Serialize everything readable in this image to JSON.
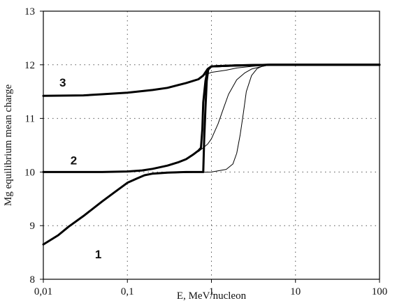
{
  "chart_data": {
    "type": "line",
    "x_scale": "log",
    "xlim": [
      0.01,
      100
    ],
    "ylim": [
      8,
      13
    ],
    "xlabel": "E, MeV/nucleon",
    "ylabel": "Mg equilibrium mean charge",
    "x_ticks": [
      0.01,
      0.1,
      1,
      10,
      100
    ],
    "x_tick_labels": [
      "0,01",
      "0,1",
      "1",
      "10",
      "100"
    ],
    "y_ticks": [
      8,
      9,
      10,
      11,
      12,
      13
    ],
    "y_tick_labels": [
      "8",
      "9",
      "10",
      "11",
      "12",
      "13"
    ],
    "grid": "dotted",
    "legend": "none",
    "curve_labels": [
      {
        "text": "1",
        "x": 0.045,
        "y": 8.47
      },
      {
        "text": "2",
        "x": 0.023,
        "y": 10.22
      },
      {
        "text": "3",
        "x": 0.017,
        "y": 11.67
      }
    ],
    "series": [
      {
        "values": [
          [
            0.01,
            8.65
          ],
          [
            0.015,
            8.82
          ],
          [
            0.02,
            8.98
          ],
          [
            0.03,
            9.18
          ],
          [
            0.05,
            9.45
          ],
          [
            0.07,
            9.62
          ],
          [
            0.1,
            9.8
          ],
          [
            0.13,
            9.88
          ],
          [
            0.16,
            9.94
          ],
          [
            0.2,
            9.97
          ],
          [
            0.3,
            9.99
          ],
          [
            0.5,
            10.0
          ],
          [
            0.75,
            10.0
          ],
          [
            0.8,
            10.0
          ],
          [
            0.82,
            10.6
          ],
          [
            0.85,
            11.2
          ],
          [
            0.88,
            11.7
          ],
          [
            0.92,
            11.93
          ],
          [
            1.0,
            11.97
          ],
          [
            1.5,
            11.98
          ],
          [
            2,
            11.99
          ],
          [
            5,
            12.0
          ],
          [
            10,
            12.0
          ],
          [
            100,
            12.0
          ]
        ],
        "stroke": "heavy"
      },
      {
        "values": [
          [
            0.01,
            10.0
          ],
          [
            0.05,
            10.0
          ],
          [
            0.1,
            10.01
          ],
          [
            0.15,
            10.03
          ],
          [
            0.2,
            10.06
          ],
          [
            0.3,
            10.12
          ],
          [
            0.4,
            10.18
          ],
          [
            0.5,
            10.24
          ],
          [
            0.6,
            10.32
          ],
          [
            0.7,
            10.4
          ],
          [
            0.75,
            10.45
          ],
          [
            0.78,
            10.8
          ],
          [
            0.8,
            11.3
          ],
          [
            0.85,
            11.7
          ],
          [
            0.9,
            11.9
          ],
          [
            1.0,
            11.97
          ],
          [
            1.5,
            11.98
          ],
          [
            5,
            12.0
          ],
          [
            100,
            12.0
          ]
        ],
        "stroke": "heavy"
      },
      {
        "values": [
          [
            0.01,
            11.42
          ],
          [
            0.03,
            11.43
          ],
          [
            0.05,
            11.45
          ],
          [
            0.1,
            11.48
          ],
          [
            0.2,
            11.53
          ],
          [
            0.3,
            11.57
          ],
          [
            0.5,
            11.66
          ],
          [
            0.7,
            11.73
          ],
          [
            0.8,
            11.8
          ],
          [
            0.9,
            11.92
          ],
          [
            1.0,
            11.97
          ],
          [
            2,
            11.99
          ],
          [
            5,
            12.0
          ],
          [
            100,
            12.0
          ]
        ],
        "stroke": "heavy"
      },
      {
        "values": [
          [
            0.2,
            9.97
          ],
          [
            0.5,
            9.99
          ],
          [
            1.0,
            10.0
          ],
          [
            1.5,
            10.05
          ],
          [
            1.8,
            10.15
          ],
          [
            2.0,
            10.35
          ],
          [
            2.2,
            10.7
          ],
          [
            2.4,
            11.1
          ],
          [
            2.6,
            11.5
          ],
          [
            3.0,
            11.8
          ],
          [
            3.5,
            11.93
          ],
          [
            4.0,
            11.97
          ],
          [
            5.0,
            12.0
          ],
          [
            100,
            12.0
          ]
        ],
        "stroke": "thin"
      },
      {
        "values": [
          [
            0.7,
            10.38
          ],
          [
            0.9,
            10.52
          ],
          [
            1.0,
            10.62
          ],
          [
            1.2,
            10.9
          ],
          [
            1.4,
            11.2
          ],
          [
            1.6,
            11.45
          ],
          [
            2.0,
            11.72
          ],
          [
            2.5,
            11.85
          ],
          [
            3.0,
            11.92
          ],
          [
            4.0,
            11.97
          ],
          [
            5.0,
            12.0
          ],
          [
            100,
            12.0
          ]
        ],
        "stroke": "thin"
      },
      {
        "values": [
          [
            0.8,
            11.8
          ],
          [
            1.0,
            11.86
          ],
          [
            1.5,
            11.9
          ],
          [
            2.0,
            11.94
          ],
          [
            3.0,
            11.97
          ],
          [
            5.0,
            12.0
          ],
          [
            100,
            12.0
          ]
        ],
        "stroke": "thin"
      }
    ]
  }
}
